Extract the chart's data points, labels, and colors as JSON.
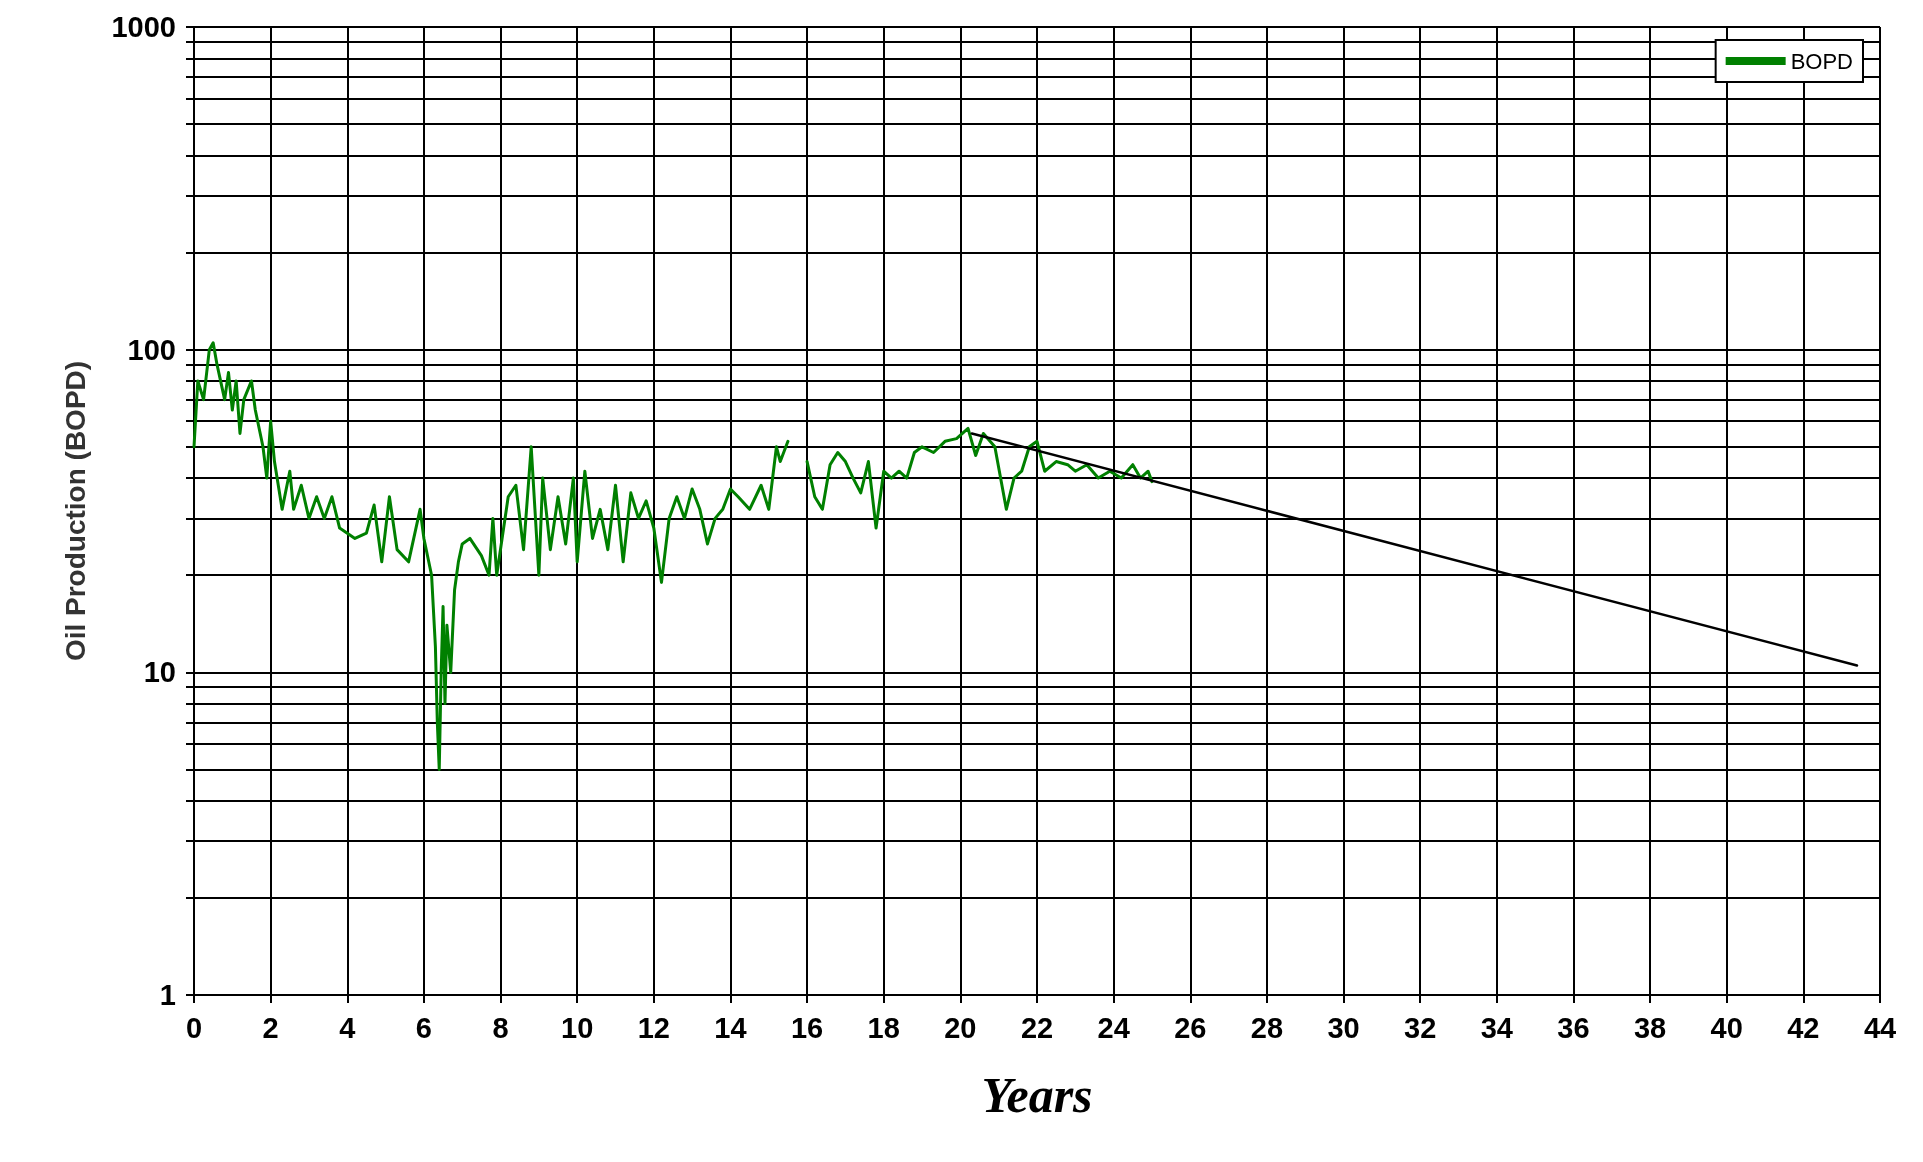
{
  "chart_data": {
    "type": "line",
    "xlabel": "Years",
    "ylabel": "Oil Production (BOPD)",
    "log": "y",
    "grid": true,
    "legend": "top right",
    "marker": "none",
    "line_style": "solid",
    "xlim": [
      0,
      44
    ],
    "xticks": [
      0,
      2,
      4,
      6,
      8,
      10,
      12,
      14,
      16,
      18,
      20,
      22,
      24,
      26,
      28,
      30,
      32,
      34,
      36,
      38,
      40,
      42,
      44
    ],
    "ylim": [
      1,
      1000
    ],
    "yticks": [
      1,
      {
        "value": 2,
        "label": null
      },
      {
        "value": 3,
        "label": null
      },
      {
        "value": 4,
        "label": null
      },
      {
        "value": 5,
        "label": null
      },
      {
        "value": 6,
        "label": null
      },
      {
        "value": 7,
        "label": null
      },
      {
        "value": 8,
        "label": null
      },
      {
        "value": 9,
        "label": null
      },
      10,
      {
        "value": 20,
        "label": null
      },
      {
        "value": 30,
        "label": null
      },
      {
        "value": 40,
        "label": null
      },
      {
        "value": 50,
        "label": null
      },
      {
        "value": 60,
        "label": null
      },
      {
        "value": 70,
        "label": null
      },
      {
        "value": 80,
        "label": null
      },
      {
        "value": 90,
        "label": null
      },
      100,
      {
        "value": 200,
        "label": null
      },
      {
        "value": 300,
        "label": null
      },
      {
        "value": 400,
        "label": null
      },
      {
        "value": 500,
        "label": null
      },
      {
        "value": 600,
        "label": null
      },
      {
        "value": 700,
        "label": null
      },
      {
        "value": 800,
        "label": null
      },
      {
        "value": 900,
        "label": null
      },
      1000
    ],
    "series": [
      {
        "name": "BOPD",
        "color": "#008000",
        "x": [
          0,
          0.1,
          0.25,
          0.4,
          0.5,
          0.6,
          0.8,
          0.9,
          1.0,
          1.1,
          1.2,
          1.3,
          1.5,
          1.6,
          1.8,
          1.9,
          2.0,
          2.1,
          2.3,
          2.5,
          2.6,
          2.8,
          3.0,
          3.2,
          3.4,
          3.6,
          3.8,
          4.0,
          4.2,
          4.5,
          4.7,
          4.9,
          5.1,
          5.3,
          5.6,
          5.9,
          6.0,
          6.2,
          6.3,
          6.35,
          6.4,
          6.45,
          6.5,
          6.55,
          6.6,
          6.7,
          6.8,
          6.9,
          7.0,
          7.2,
          7.5,
          7.7,
          7.8,
          7.9,
          8.2,
          8.4,
          8.6,
          8.8,
          9.0,
          9.1,
          9.3,
          9.5,
          9.7,
          9.9,
          10.0,
          10.2,
          10.4,
          10.6,
          10.8,
          11.0,
          11.2,
          11.4,
          11.6,
          11.8,
          12.0,
          12.2,
          12.4,
          12.6,
          12.8,
          13.0,
          13.2,
          13.4,
          13.6,
          13.8,
          14.0,
          14.2,
          14.5,
          14.8,
          15.0,
          15.2,
          15.3,
          15.5,
          15.75,
          16.0,
          16.2,
          16.4,
          16.6,
          16.8,
          17.0,
          17.2,
          17.4,
          17.6,
          17.8,
          18.0,
          18.2,
          18.4,
          18.6,
          18.8,
          19.0,
          19.3,
          19.6,
          19.9,
          20.2,
          20.4,
          20.6,
          20.9,
          21.2,
          21.4,
          21.6,
          21.8,
          22.0,
          22.2,
          22.5,
          22.8,
          23.0,
          23.3,
          23.6,
          23.9,
          24.2,
          24.5,
          24.7,
          24.9,
          25.0
        ],
        "values": [
          50,
          80,
          70,
          100,
          105,
          90,
          70,
          85,
          65,
          80,
          55,
          70,
          80,
          65,
          50,
          40,
          60,
          45,
          32,
          42,
          32,
          38,
          30,
          35,
          30,
          35,
          28,
          27,
          26,
          27,
          33,
          22,
          35,
          24,
          22,
          32,
          26,
          20,
          12,
          7,
          5,
          10,
          16,
          8,
          14,
          10,
          18,
          22,
          25,
          26,
          23,
          20,
          30,
          20,
          35,
          38,
          24,
          50,
          20,
          40,
          24,
          35,
          25,
          40,
          22,
          42,
          26,
          32,
          24,
          38,
          22,
          36,
          30,
          34,
          28,
          19,
          30,
          35,
          30,
          37,
          32,
          25,
          30,
          32,
          37,
          35,
          32,
          38,
          32,
          50,
          45,
          52,
          null,
          45,
          35,
          32,
          44,
          48,
          45,
          40,
          36,
          45,
          28,
          42,
          40,
          42,
          40,
          48,
          50,
          48,
          52,
          53,
          57,
          47,
          55,
          50,
          32,
          40,
          42,
          50,
          52,
          42,
          45,
          44,
          42,
          44,
          40,
          42,
          40,
          44,
          40,
          42,
          39
        ]
      },
      {
        "color": "#000000",
        "x": [
          20.3,
          43.4
        ],
        "values": [
          55,
          10.5
        ]
      }
    ]
  }
}
